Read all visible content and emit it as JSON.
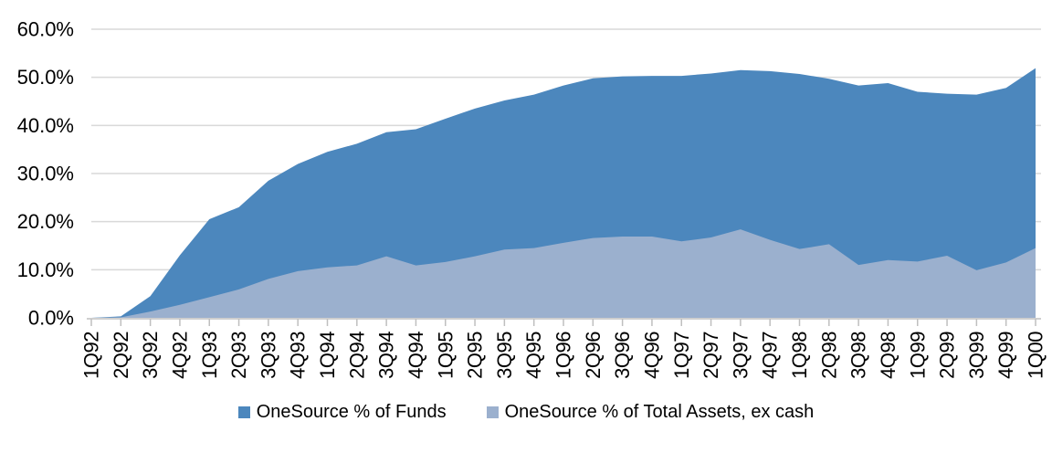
{
  "chart_data": {
    "type": "area",
    "stacking": "overlap",
    "title": "",
    "xlabel": "",
    "ylabel": "",
    "categories": [
      "1Q92",
      "2Q92",
      "3Q92",
      "4Q92",
      "1Q93",
      "2Q93",
      "3Q93",
      "4Q93",
      "1Q94",
      "2Q94",
      "3Q94",
      "4Q94",
      "1Q95",
      "2Q95",
      "3Q95",
      "4Q95",
      "1Q96",
      "2Q96",
      "3Q96",
      "4Q96",
      "1Q97",
      "2Q97",
      "3Q97",
      "4Q97",
      "1Q98",
      "2Q98",
      "3Q98",
      "4Q98",
      "1Q99",
      "2Q99",
      "3Q99",
      "4Q99",
      "1Q00"
    ],
    "series": [
      {
        "name": "OneSource % of Funds",
        "color": "#4C87BD",
        "values": [
          0.0,
          0.3,
          4.5,
          13.0,
          20.5,
          23.0,
          28.5,
          32.0,
          34.5,
          36.2,
          38.6,
          39.2,
          41.4,
          43.5,
          45.2,
          46.4,
          48.3,
          49.8,
          50.2,
          50.3,
          50.3,
          50.8,
          51.5,
          51.3,
          50.7,
          49.7,
          48.3,
          48.8,
          47.0,
          46.6,
          46.4,
          47.8,
          51.9
        ]
      },
      {
        "name": "OneSource % of Total Assets, ex cash",
        "color": "#9BB0CE",
        "values": [
          0.0,
          0.1,
          1.3,
          2.7,
          4.3,
          5.9,
          8.1,
          9.7,
          10.5,
          10.9,
          12.8,
          10.9,
          11.6,
          12.8,
          14.2,
          14.5,
          15.6,
          16.6,
          16.9,
          16.9,
          15.9,
          16.7,
          18.4,
          16.2,
          14.3,
          15.3,
          11.0,
          12.0,
          11.7,
          12.9,
          9.9,
          11.5,
          14.5
        ]
      }
    ],
    "ylim": [
      0,
      60
    ],
    "y_tick_step": 10,
    "y_tick_labels": [
      "0.0%",
      "10.0%",
      "20.0%",
      "30.0%",
      "40.0%",
      "50.0%",
      "60.0%"
    ],
    "x_tick_rotation": 90,
    "grid": "horizontal",
    "legend_position": "bottom",
    "gridline_color": "#D9D9D9",
    "axis_color": "#BFBFBF",
    "text_color": "#000000",
    "background": "#FFFFFF"
  }
}
